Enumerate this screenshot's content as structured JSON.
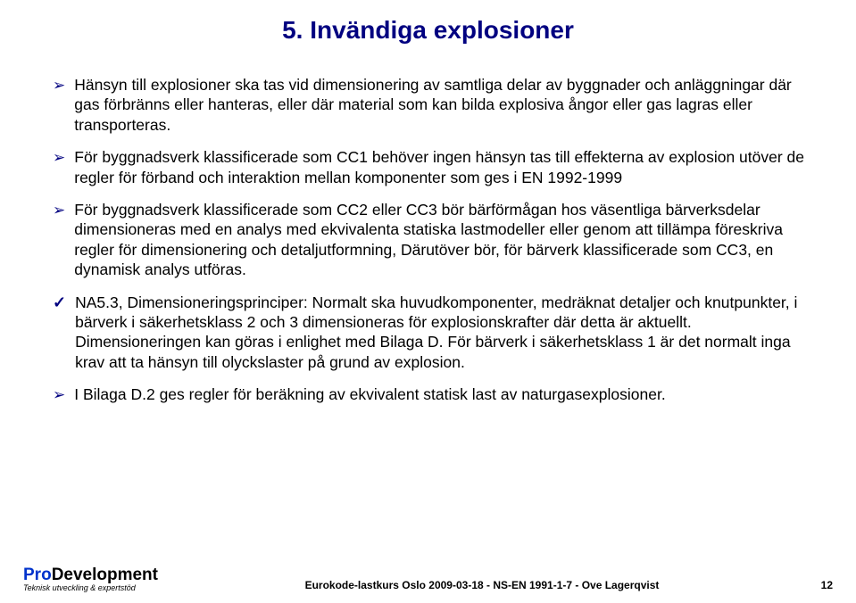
{
  "title": "5. Invändiga explosioner",
  "items": [
    {
      "marker": "arrow",
      "text": "Hänsyn till explosioner ska tas vid dimensionering av samtliga delar av byggnader och anläggningar där gas förbränns eller hanteras, eller där material som kan bilda explosiva ångor eller gas lagras eller transporteras."
    },
    {
      "marker": "arrow",
      "text": "För byggnadsverk klassificerade som CC1 behöver ingen hänsyn tas till effekterna av explosion utöver de regler för förband och interaktion mellan komponenter som ges i EN 1992-1999"
    },
    {
      "marker": "arrow",
      "text": "För byggnadsverk klassificerade som CC2 eller CC3 bör bärförmågan hos väsentliga bärverksdelar dimensioneras med en analys med ekvivalenta statiska lastmodeller eller genom att tillämpa föreskriva regler för dimensionering och detaljutformning, Därutöver bör, för bärverk klassificerade som CC3, en dynamisk analys utföras."
    },
    {
      "marker": "check",
      "text": "NA5.3, Dimensioneringsprinciper: Normalt ska huvudkomponenter, medräknat detaljer och knutpunkter, i bärverk i säkerhetsklass 2 och 3 dimensioneras för explosionskrafter där detta är aktuellt. Dimensioneringen kan göras i enlighet med Bilaga D. För bärverk i säkerhetsklass 1 är det normalt inga krav att ta hänsyn till olyckslaster på grund av explosion."
    },
    {
      "marker": "arrow",
      "text": "I Bilaga D.2 ges regler för beräkning av ekvivalent statisk last av naturgasexplosioner."
    }
  ],
  "footer": {
    "logo_pro": "Pro",
    "logo_dev": "Development",
    "logo_sub": "Teknisk utveckling & expertstöd",
    "center": "Eurokode-lastkurs Oslo 2009-03-18 - NS-EN 1991-1-7 - Ove Lagerqvist",
    "page": "12"
  },
  "colors": {
    "accent": "#000080",
    "logo_blue": "#0033cc",
    "text": "#000000",
    "background": "#ffffff"
  }
}
